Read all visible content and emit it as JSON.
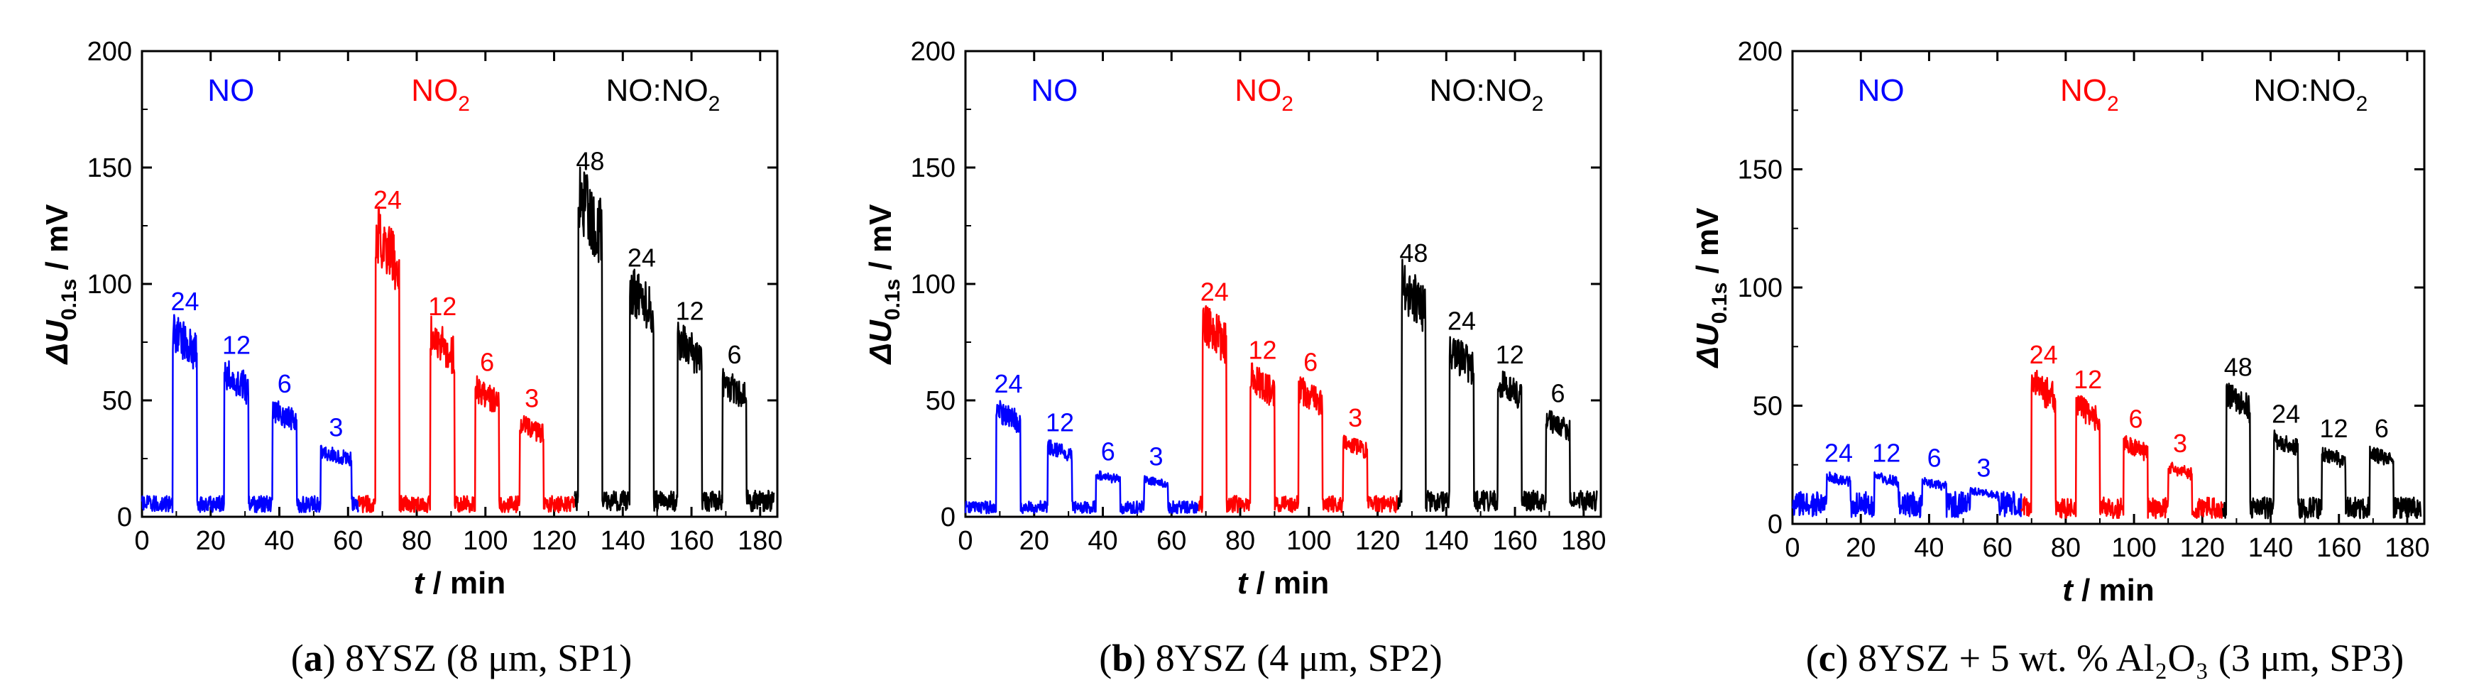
{
  "colors": {
    "NO": "#0000ff",
    "NO2": "#ff0000",
    "MIX": "#000000"
  },
  "chart_data": [
    {
      "type": "line",
      "id": "a",
      "caption": {
        "letter": "a",
        "text": " 8YSZ (8 μm, SP1)"
      },
      "xlabel": {
        "italic": "t",
        "rest": " / min"
      },
      "ylabel": {
        "main": "ΔU",
        "sub": "0.1s",
        "unit": " / mV"
      },
      "xlim": [
        0,
        185
      ],
      "ylim": [
        0,
        200
      ],
      "xticks": [
        0,
        20,
        40,
        60,
        80,
        100,
        120,
        140,
        160,
        180
      ],
      "yticks": [
        0,
        50,
        100,
        150,
        200
      ],
      "regions": [
        {
          "label": "NO",
          "sub": "",
          "color_key": "NO"
        },
        {
          "label": "NO",
          "sub": "2",
          "color_key": "NO2"
        },
        {
          "label": "NO:NO",
          "sub": "2",
          "color_key": "MIX"
        }
      ],
      "series": [
        {
          "name": "NO",
          "color_key": "NO",
          "x_range": [
            0,
            63
          ],
          "base": 4,
          "pulses": [
            {
              "start": 9,
              "end": 16,
              "height": 80,
              "label": "24"
            },
            {
              "start": 24,
              "end": 31,
              "height": 62,
              "label": "12"
            },
            {
              "start": 38,
              "end": 45,
              "height": 46,
              "label": "6"
            },
            {
              "start": 52,
              "end": 61,
              "height": 28,
              "label": "3"
            }
          ]
        },
        {
          "name": "NO2",
          "color_key": "NO2",
          "x_range": [
            63,
            126
          ],
          "base": 4,
          "pulses": [
            {
              "start": 68,
              "end": 75,
              "height": 122,
              "label": "24"
            },
            {
              "start": 84,
              "end": 91,
              "height": 78,
              "label": "12"
            },
            {
              "start": 97,
              "end": 104,
              "height": 55,
              "label": "6"
            },
            {
              "start": 110,
              "end": 117,
              "height": 40,
              "label": "3"
            }
          ]
        },
        {
          "name": "NO:NO2",
          "color_key": "MIX",
          "x_range": [
            126,
            184
          ],
          "base": 5,
          "pulses": [
            {
              "start": 127,
              "end": 134,
              "height": 138,
              "label": "48"
            },
            {
              "start": 142,
              "end": 149,
              "height": 98,
              "label": "24"
            },
            {
              "start": 156,
              "end": 163,
              "height": 76,
              "label": "12"
            },
            {
              "start": 169,
              "end": 176,
              "height": 58,
              "label": "6"
            }
          ]
        }
      ]
    },
    {
      "type": "line",
      "id": "b",
      "caption": {
        "letter": "b",
        "text": " 8YSZ (4 μm, SP2)"
      },
      "xlabel": {
        "italic": "t",
        "rest": " / min"
      },
      "ylabel": {
        "main": "ΔU",
        "sub": "0.1s",
        "unit": " / mV"
      },
      "xlim": [
        0,
        185
      ],
      "ylim": [
        0,
        200
      ],
      "xticks": [
        0,
        20,
        40,
        60,
        80,
        100,
        120,
        140,
        160,
        180
      ],
      "yticks": [
        0,
        50,
        100,
        150,
        200
      ],
      "regions": [
        {
          "label": "NO",
          "sub": "",
          "color_key": "NO"
        },
        {
          "label": "NO",
          "sub": "2",
          "color_key": "NO2"
        },
        {
          "label": "NO:NO",
          "sub": "2",
          "color_key": "MIX"
        }
      ],
      "series": [
        {
          "name": "NO",
          "color_key": "NO",
          "x_range": [
            0,
            68
          ],
          "base": 3,
          "pulses": [
            {
              "start": 9,
              "end": 16,
              "height": 46,
              "label": "24"
            },
            {
              "start": 24,
              "end": 31,
              "height": 30,
              "label": "12"
            },
            {
              "start": 38,
              "end": 45,
              "height": 18,
              "label": "6"
            },
            {
              "start": 52,
              "end": 59,
              "height": 16,
              "label": "3"
            }
          ]
        },
        {
          "name": "NO2",
          "color_key": "NO2",
          "x_range": [
            68,
            126
          ],
          "base": 4,
          "pulses": [
            {
              "start": 69,
              "end": 76,
              "height": 84,
              "label": "24"
            },
            {
              "start": 83,
              "end": 90,
              "height": 60,
              "label": "12"
            },
            {
              "start": 97,
              "end": 104,
              "height": 55,
              "label": "6"
            },
            {
              "start": 110,
              "end": 117,
              "height": 32,
              "label": "3"
            }
          ]
        },
        {
          "name": "NO:NO2",
          "color_key": "MIX",
          "x_range": [
            126,
            184
          ],
          "base": 5,
          "pulses": [
            {
              "start": 127,
              "end": 134,
              "height": 100,
              "label": "48"
            },
            {
              "start": 141,
              "end": 148,
              "height": 72,
              "label": "24"
            },
            {
              "start": 155,
              "end": 162,
              "height": 58,
              "label": "12"
            },
            {
              "start": 169,
              "end": 176,
              "height": 42,
              "label": "6"
            }
          ]
        }
      ]
    },
    {
      "type": "line",
      "id": "c",
      "caption": {
        "letter": "c",
        "text": " 8YSZ + 5 wt. % Al₂O₃ (3 μm, SP3)"
      },
      "xlabel": {
        "italic": "t",
        "rest": " / min"
      },
      "ylabel": {
        "main": "ΔU",
        "sub": "0.1s",
        "unit": " / mV"
      },
      "xlim": [
        0,
        185
      ],
      "ylim": [
        0,
        200
      ],
      "xticks": [
        0,
        20,
        40,
        60,
        80,
        100,
        120,
        140,
        160,
        180
      ],
      "yticks": [
        0,
        50,
        100,
        150,
        200
      ],
      "regions": [
        {
          "label": "NO",
          "sub": "",
          "color_key": "NO"
        },
        {
          "label": "NO",
          "sub": "2",
          "color_key": "NO2"
        },
        {
          "label": "NO:NO",
          "sub": "2",
          "color_key": "MIX"
        }
      ],
      "series": [
        {
          "name": "NO",
          "color_key": "NO",
          "x_range": [
            0,
            67
          ],
          "base": 6,
          "pulses": [
            {
              "start": 10,
              "end": 17,
              "height": 20,
              "label": "24"
            },
            {
              "start": 24,
              "end": 31,
              "height": 20,
              "label": "12"
            },
            {
              "start": 38,
              "end": 45,
              "height": 18,
              "label": "6"
            },
            {
              "start": 52,
              "end": 60,
              "height": 14,
              "label": "3"
            }
          ]
        },
        {
          "name": "NO2",
          "color_key": "NO2",
          "x_range": [
            67,
            126
          ],
          "base": 5,
          "pulses": [
            {
              "start": 70,
              "end": 77,
              "height": 60,
              "label": "24"
            },
            {
              "start": 83,
              "end": 90,
              "height": 50,
              "label": "12"
            },
            {
              "start": 97,
              "end": 104,
              "height": 34,
              "label": "6"
            },
            {
              "start": 110,
              "end": 117,
              "height": 24,
              "label": "3"
            }
          ]
        },
        {
          "name": "NO:NO2",
          "color_key": "MIX",
          "x_range": [
            126,
            184
          ],
          "base": 5,
          "pulses": [
            {
              "start": 127,
              "end": 134,
              "height": 55,
              "label": "48"
            },
            {
              "start": 141,
              "end": 148,
              "height": 36,
              "label": "24"
            },
            {
              "start": 155,
              "end": 162,
              "height": 30,
              "label": "12"
            },
            {
              "start": 169,
              "end": 176,
              "height": 30,
              "label": "6"
            }
          ]
        }
      ]
    }
  ]
}
